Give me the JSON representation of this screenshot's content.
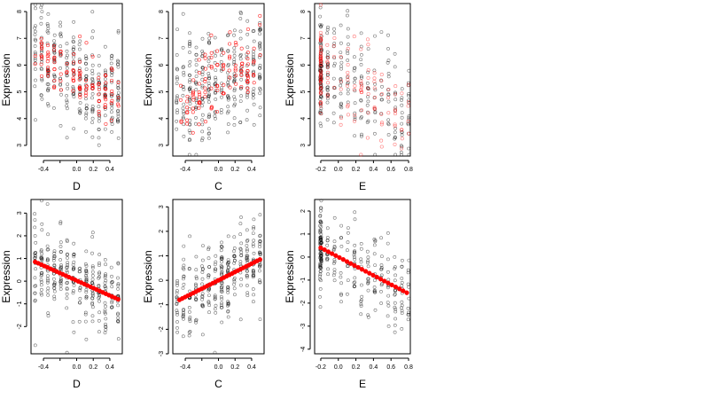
{
  "chart_data": [
    {
      "type": "scatter",
      "xlabel": "D",
      "ylabel": "Expression",
      "xlim": [
        -0.55,
        0.55
      ],
      "ylim": [
        2.6,
        8.3
      ],
      "xticks": [
        -0.4,
        -0.2,
        0.0,
        0.2,
        0.4
      ],
      "xtick_labels": [
        "-0.4",
        "",
        "0.0",
        "0.2",
        "0.4"
      ],
      "yticks": [
        3,
        4,
        5,
        6,
        7,
        8
      ],
      "ytick_labels": [
        "3",
        "4",
        "5",
        "6",
        "7",
        "8"
      ],
      "cloud": {
        "x": [
          -0.5,
          0.5
        ],
        "y_mean": [
          6.6,
          4.7
        ],
        "spread": 1.0,
        "count": 300
      },
      "red_points": {
        "x": [
          -0.5,
          0.5
        ],
        "y_mean": [
          6.5,
          4.7
        ],
        "spread": 0.55,
        "count": 110,
        "style": "hollow-dense"
      },
      "series": [
        {
          "point_color": "#000000",
          "overlay_color": "#ff0000"
        }
      ]
    },
    {
      "type": "scatter",
      "xlabel": "C",
      "ylabel": "Expression",
      "xlim": [
        -0.55,
        0.55
      ],
      "ylim": [
        2.6,
        8.3
      ],
      "xticks": [
        -0.4,
        -0.2,
        0.0,
        0.2,
        0.4
      ],
      "xtick_labels": [
        "-0.4",
        "",
        "0.0",
        "0.2",
        "0.4"
      ],
      "yticks": [
        3,
        4,
        5,
        6,
        7,
        8
      ],
      "ytick_labels": [
        "3",
        "4",
        "5",
        "6",
        "7",
        "8"
      ],
      "cloud": {
        "x": [
          -0.5,
          0.5
        ],
        "y_mean": [
          4.8,
          6.0
        ],
        "spread": 1.0,
        "count": 300
      },
      "red_points": {
        "x": [
          -0.45,
          0.5
        ],
        "y_mean": [
          4.5,
          6.6
        ],
        "spread": 0.7,
        "count": 110,
        "style": "hollow-dense"
      },
      "series": [
        {
          "point_color": "#000000",
          "overlay_color": "#ff0000"
        }
      ]
    },
    {
      "type": "scatter",
      "xlabel": "E",
      "ylabel": "Expression",
      "xlim": [
        -0.27,
        0.82
      ],
      "ylim": [
        2.6,
        8.3
      ],
      "xticks": [
        -0.2,
        0.0,
        0.2,
        0.4,
        0.6,
        0.8
      ],
      "xtick_labels": [
        "-0.2",
        "0.0",
        "0.2",
        "0.4",
        "0.6",
        "0.8"
      ],
      "yticks": [
        3,
        4,
        5,
        6,
        7,
        8
      ],
      "ytick_labels": [
        "3",
        "4",
        "5",
        "6",
        "7",
        "8"
      ],
      "cloud": {
        "x": [
          -0.2,
          0.8
        ],
        "y_mean": [
          5.7,
          4.2
        ],
        "spread": 1.0,
        "count": 260
      },
      "red_points": {
        "x": [
          -0.2,
          0.8
        ],
        "y_mean": [
          6.0,
          4.2
        ],
        "spread": 0.9,
        "count": 140,
        "style": "hollow-light"
      },
      "series": [
        {
          "point_color": "#000000",
          "overlay_color": "#ff0000"
        }
      ]
    },
    {
      "type": "scatter",
      "xlabel": "D",
      "ylabel": "Expression",
      "xlim": [
        -0.55,
        0.55
      ],
      "ylim": [
        -3.2,
        3.6
      ],
      "xticks": [
        -0.4,
        -0.2,
        0.0,
        0.2,
        0.4
      ],
      "xtick_labels": [
        "-0.4",
        "",
        "0.0",
        "0.2",
        "0.4"
      ],
      "yticks": [
        -2,
        -1,
        0,
        1,
        2,
        3
      ],
      "ytick_labels": [
        "-2",
        "-1",
        "0",
        "1",
        "2",
        "3"
      ],
      "cloud": {
        "x": [
          -0.5,
          0.5
        ],
        "y_mean": [
          0.9,
          -0.8
        ],
        "spread": 0.9,
        "count": 300
      },
      "red_points": {
        "x": [
          -0.5,
          0.5
        ],
        "y_mean": [
          0.85,
          -0.8
        ],
        "spread": 0.0,
        "count": 28,
        "style": "filled"
      },
      "series": [
        {
          "point_color": "#000000",
          "overlay_color": "#ff0000"
        }
      ]
    },
    {
      "type": "scatter",
      "xlabel": "C",
      "ylabel": "Expression",
      "xlim": [
        -0.55,
        0.55
      ],
      "ylim": [
        -3.0,
        3.3
      ],
      "xticks": [
        -0.4,
        -0.2,
        0.0,
        0.2,
        0.4
      ],
      "xtick_labels": [
        "-0.4",
        "",
        "0.0",
        "0.2",
        "0.4"
      ],
      "yticks": [
        -3,
        -2,
        -1,
        0,
        1,
        2,
        3
      ],
      "ytick_labels": [
        "-3",
        "-2",
        "-1",
        "0",
        "1",
        "2",
        "3"
      ],
      "cloud": {
        "x": [
          -0.5,
          0.5
        ],
        "y_mean": [
          -0.85,
          0.85
        ],
        "spread": 0.9,
        "count": 300
      },
      "red_points": {
        "x": [
          -0.47,
          0.5
        ],
        "y_mean": [
          -0.8,
          0.85
        ],
        "spread": 0.0,
        "count": 30,
        "style": "filled"
      },
      "series": [
        {
          "point_color": "#000000",
          "overlay_color": "#ff0000"
        }
      ]
    },
    {
      "type": "scatter",
      "xlabel": "E",
      "ylabel": "Expression",
      "xlim": [
        -0.27,
        0.82
      ],
      "ylim": [
        -4.2,
        2.5
      ],
      "xticks": [
        -0.2,
        0.0,
        0.2,
        0.4,
        0.6,
        0.8
      ],
      "xtick_labels": [
        "-0.2",
        "0.0",
        "0.2",
        "0.4",
        "0.6",
        "0.8"
      ],
      "yticks": [
        -4,
        -3,
        -2,
        -1,
        0,
        1,
        2
      ],
      "ytick_labels": [
        "-4",
        "-3",
        "-2",
        "-1",
        "0",
        "1",
        "2"
      ],
      "cloud": {
        "x": [
          -0.2,
          0.8
        ],
        "y_mean": [
          0.4,
          -1.6
        ],
        "spread": 0.85,
        "count": 260
      },
      "red_points": {
        "x": [
          -0.2,
          0.78
        ],
        "y_mean": [
          0.4,
          -1.55
        ],
        "spread": 0.0,
        "count": 24,
        "style": "filled"
      },
      "series": [
        {
          "point_color": "#000000",
          "overlay_color": "#ff0000"
        }
      ]
    }
  ]
}
